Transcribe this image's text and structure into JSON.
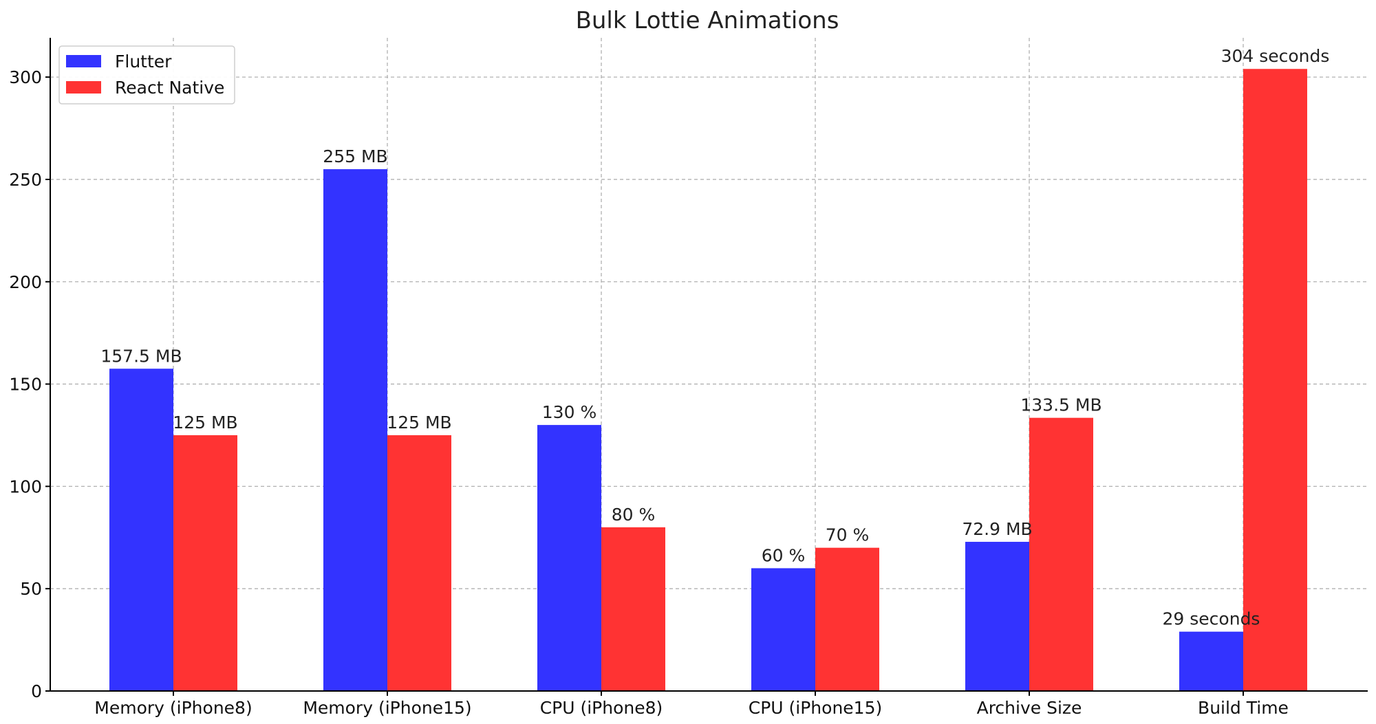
{
  "chart_data": {
    "type": "bar",
    "title": "Bulk Lottie Animations",
    "xlabel": "",
    "ylabel": "",
    "categories": [
      "Memory (iPhone8)",
      "Memory (iPhone15)",
      "CPU (iPhone8)",
      "CPU (iPhone15)",
      "Archive Size",
      "Build Time"
    ],
    "series": [
      {
        "name": "Flutter",
        "color": "#3333ff",
        "values": [
          157.5,
          255,
          130,
          60,
          72.9,
          29
        ],
        "labels": [
          "157.5 MB",
          "255 MB",
          "130 %",
          "60 %",
          "72.9 MB",
          "29 seconds"
        ]
      },
      {
        "name": "React Native",
        "color": "#ff3333",
        "values": [
          125,
          125,
          80,
          70,
          133.5,
          304
        ],
        "labels": [
          "125 MB",
          "125 MB",
          "80 %",
          "70 %",
          "133.5 MB",
          "304 seconds"
        ]
      }
    ],
    "ylim": [
      0,
      319.2
    ],
    "yticks": [
      0,
      50,
      100,
      150,
      200,
      250,
      300
    ],
    "grid": true,
    "legend_position": "top-left"
  }
}
